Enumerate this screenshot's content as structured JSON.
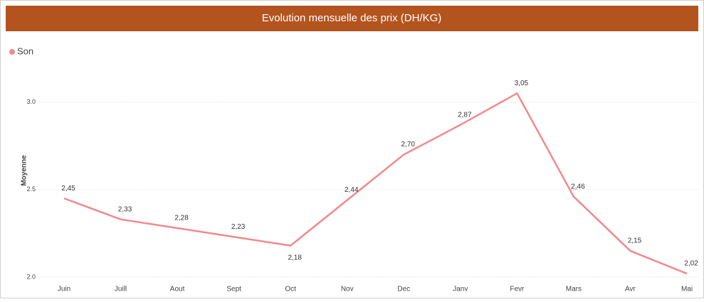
{
  "chart_data": {
    "type": "line",
    "title": "Evolution mensuelle des prix (DH/KG)",
    "y_label": "Moyenne",
    "categories": [
      "Juin",
      "Juill",
      "Aout",
      "Sept",
      "Oct",
      "Nov",
      "Dec",
      "Janv",
      "Fevr",
      "Mars",
      "Avr",
      "Mai"
    ],
    "series": [
      {
        "name": "Son",
        "color": "#f08a8c",
        "values": [
          2.45,
          2.33,
          2.28,
          2.23,
          2.18,
          2.44,
          2.7,
          2.87,
          3.05,
          2.46,
          2.15,
          2.02
        ],
        "value_labels": [
          "2,45",
          "2,33",
          "2,28",
          "2,23",
          "2,18",
          "2,44",
          "2,70",
          "2,87",
          "3,05",
          "2,46",
          "2,15",
          "2,02"
        ]
      }
    ],
    "ylim": [
      2.0,
      3.1
    ],
    "yticks": [
      {
        "value": 2,
        "label": "2.0"
      },
      {
        "value": 2.5,
        "label": "2.5"
      },
      {
        "value": 3,
        "label": "3.0"
      }
    ],
    "grid": true,
    "legend": "top-left"
  }
}
